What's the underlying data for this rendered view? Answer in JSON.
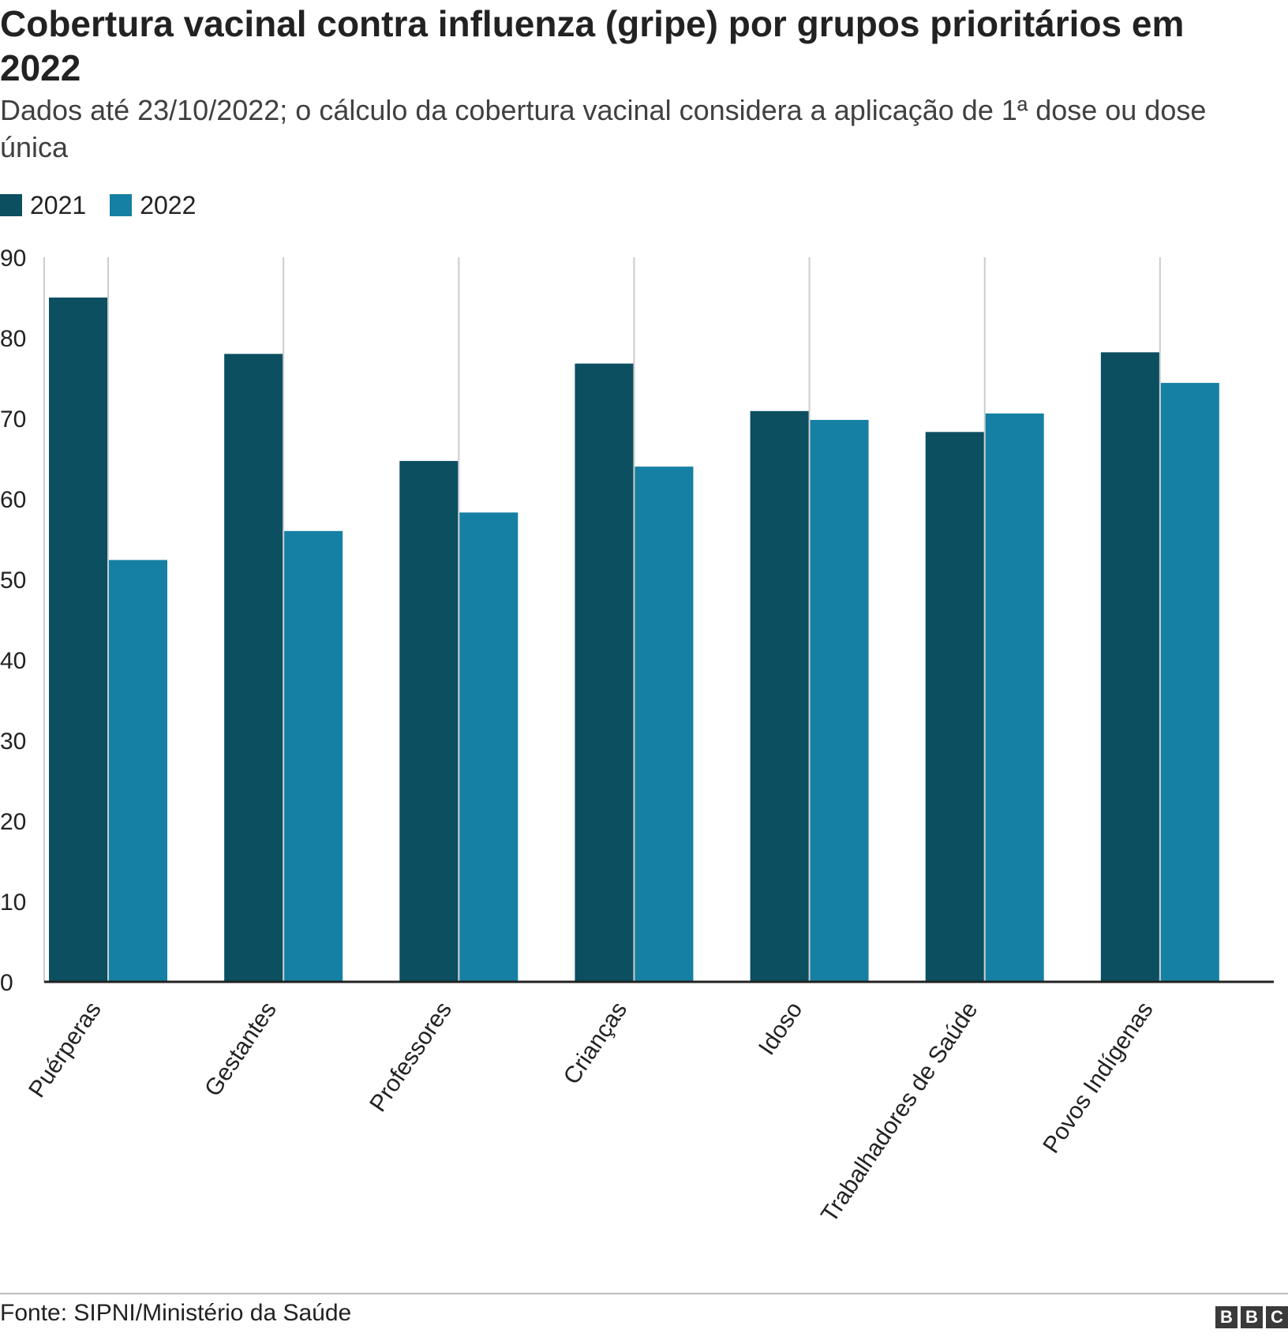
{
  "chart_data": {
    "type": "bar",
    "title": "Cobertura vacinal contra influenza (gripe) por grupos prioritários em 2022",
    "subtitle": "Dados até 23/10/2022; o cálculo da cobertura vacinal considera a aplicação de 1ª dose ou dose única",
    "categories": [
      "Puérperas",
      "Gestantes",
      "Professores",
      "Crianças",
      "Idoso",
      "Trabalhadores de Saúde",
      "Povos Indígenas"
    ],
    "series": [
      {
        "name": "2021",
        "color": "#0b4f60",
        "values": [
          85.0,
          78.0,
          64.7,
          76.8,
          70.9,
          68.3,
          78.2
        ]
      },
      {
        "name": "2022",
        "color": "#1580a3",
        "values": [
          52.4,
          56.0,
          58.3,
          64.0,
          69.8,
          70.6,
          74.4
        ]
      }
    ],
    "ylim": [
      0,
      90
    ],
    "yticks": [
      "0",
      "10",
      "20",
      "30",
      "40",
      "50",
      "60",
      "70",
      "80",
      "90"
    ],
    "grid": "vertical lines between groups",
    "legend": "top-left",
    "xlabel": "",
    "ylabel": "",
    "source": "Fonte: SIPNI/Ministério da Saúde",
    "logo": [
      "B",
      "B",
      "C"
    ]
  }
}
